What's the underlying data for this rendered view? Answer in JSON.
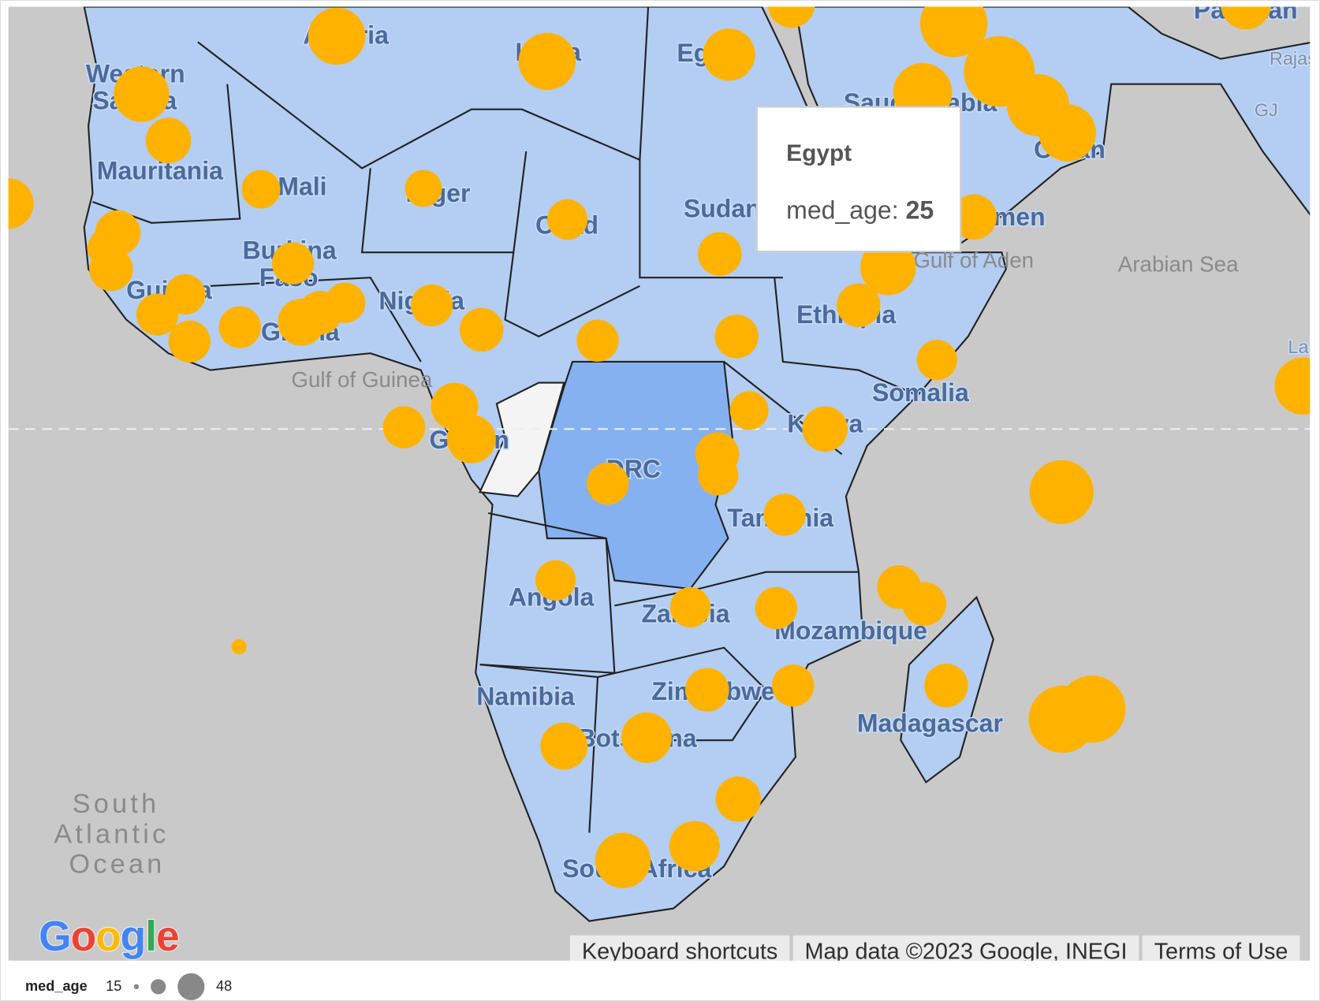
{
  "tooltip": {
    "country": "Egypt",
    "field": "med_age",
    "value": "25"
  },
  "legend": {
    "title": "med_age",
    "min": "15",
    "max": "48",
    "bubble_color": "#888888"
  },
  "colors": {
    "ocean": "#c9c9c9",
    "land": "#b3cdf3",
    "highlight": "#86b1f0",
    "no_data": "#f4f4f4",
    "bubble": "#ffb300"
  },
  "country_labels": [
    "Western",
    "Sahara",
    "Mauritania",
    "Mali",
    "Algeria",
    "Libya",
    "Egypt",
    "Niger",
    "Chad",
    "Sudan",
    "Burkina",
    "Faso",
    "Guinea",
    "Ghana",
    "Nigeria",
    "Ethiopia",
    "Somalia",
    "Kenya",
    "Gabon",
    "DRC",
    "Tanzania",
    "Angola",
    "Zambia",
    "Mozambique",
    "Namibia",
    "Zimbabwe",
    "Botswana",
    "South Africa",
    "Madagascar",
    "Saudi Arabia",
    "Oman",
    "Yemen",
    "Pakistan",
    "Rajasthan",
    "GJ",
    "La"
  ],
  "water_labels": [
    "Gulf of Guinea",
    "Gulf of Aden",
    "Arabian Sea",
    "South",
    "Atlantic",
    "Ocean"
  ],
  "logo": "Google",
  "attribution": {
    "shortcuts": "Keyboard shortcuts",
    "map_data": "Map data ©2023 Google, INEGI",
    "terms": "Terms of Use"
  }
}
